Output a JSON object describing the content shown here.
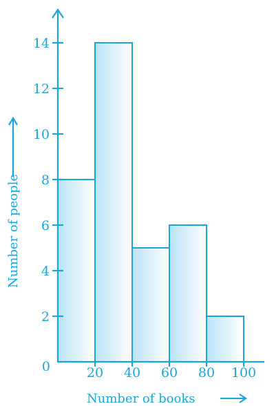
{
  "chart_data": {
    "type": "bar",
    "histogram": true,
    "bins": [
      {
        "from": 0,
        "to": 20,
        "value": 8
      },
      {
        "from": 20,
        "to": 40,
        "value": 14
      },
      {
        "from": 40,
        "to": 60,
        "value": 5
      },
      {
        "from": 60,
        "to": 80,
        "value": 6
      },
      {
        "from": 80,
        "to": 100,
        "value": 2
      }
    ],
    "x_ticks": [
      20,
      40,
      60,
      80,
      100
    ],
    "y_ticks": [
      2,
      4,
      6,
      8,
      10,
      12,
      14
    ],
    "origin_label": "0",
    "xlabel": "Number of books",
    "ylabel": "Number of people",
    "xlim": [
      0,
      110
    ],
    "ylim": [
      0,
      16
    ],
    "grid": false,
    "colors": {
      "axis": "#1aa6d8",
      "bar_fill_dark": "#b9e3f6",
      "bar_fill_light": "#ffffff"
    }
  }
}
